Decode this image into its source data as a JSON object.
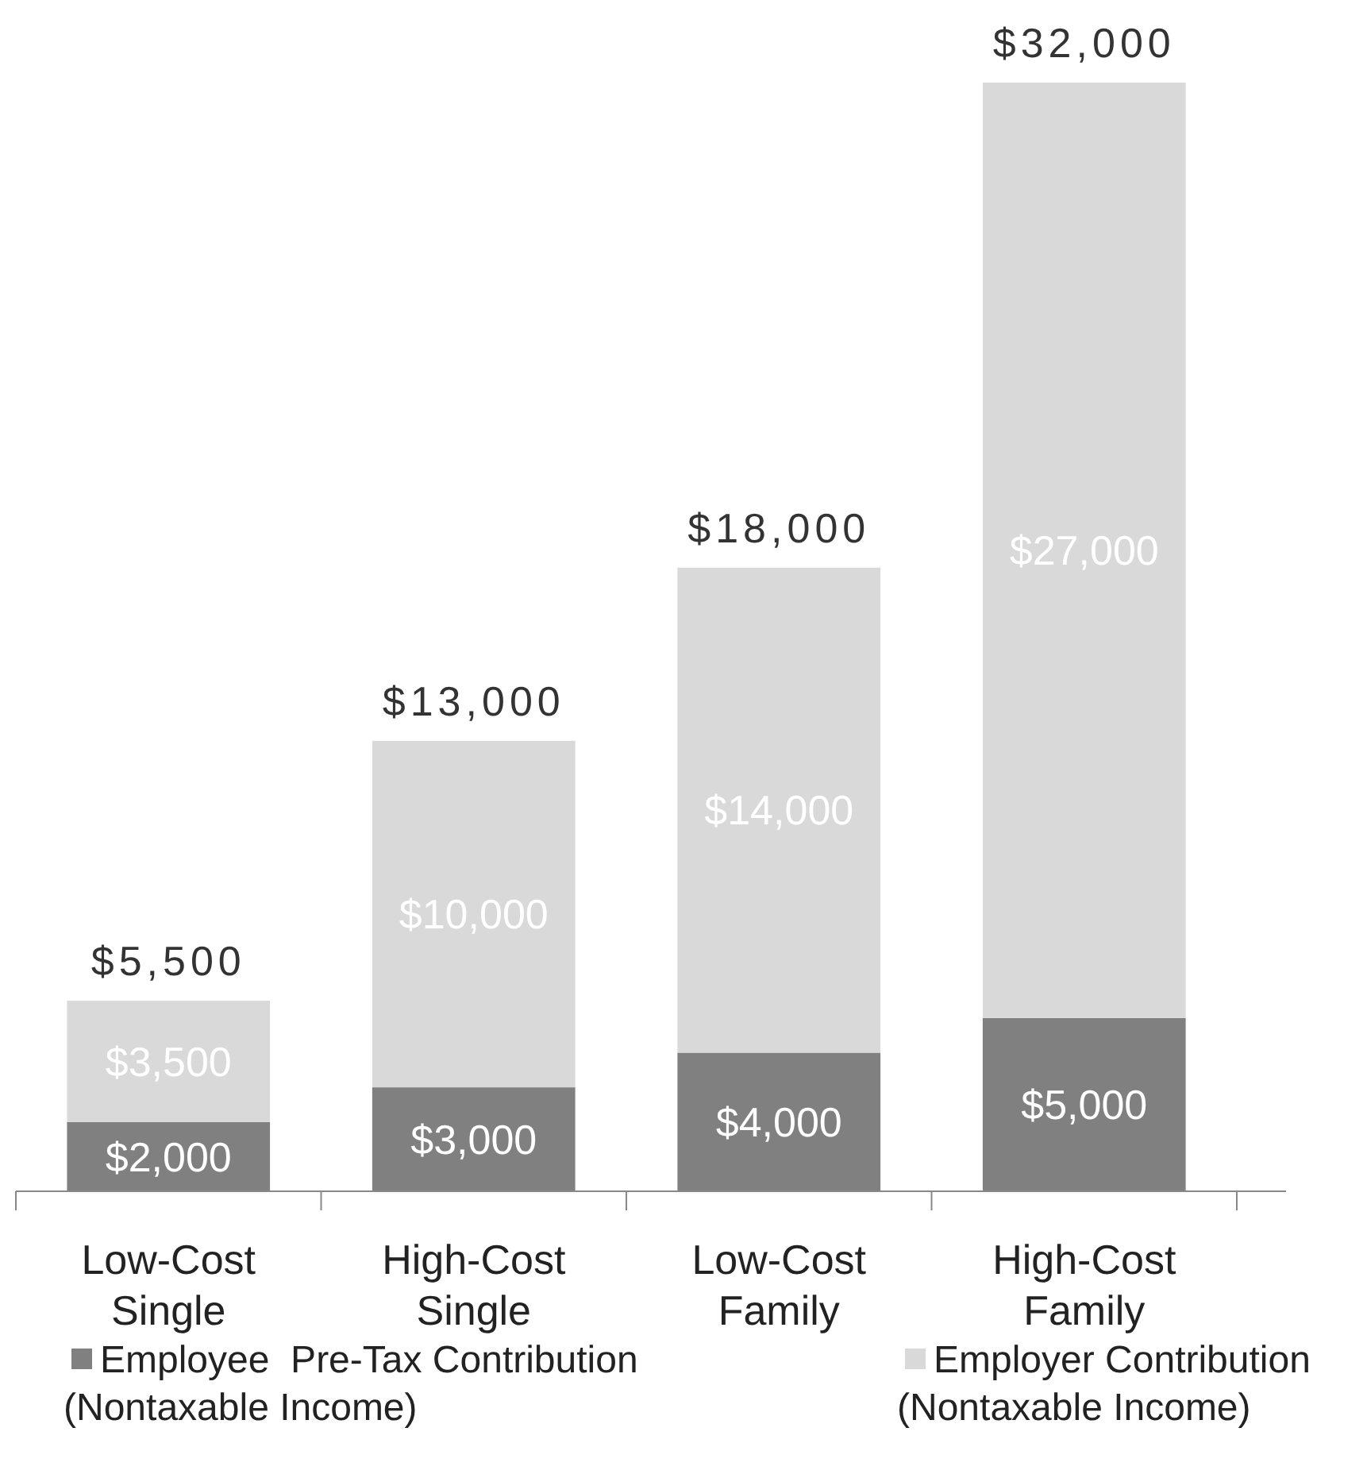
{
  "chart_data": {
    "type": "bar",
    "stacked": true,
    "categories": [
      "Low-Cost Single",
      "High-Cost Single",
      "Low-Cost Family",
      "High-Cost Family"
    ],
    "series": [
      {
        "name": "Employee  Pre-Tax Contribution (Nontaxable Income)",
        "color": "#808080",
        "values": [
          2000,
          3000,
          4000,
          5000
        ],
        "value_labels": [
          "$2,000",
          "$3,000",
          "$4,000",
          "$5,000"
        ]
      },
      {
        "name": "Employer Contribution (Nontaxable Income)",
        "color": "#d9d9d9",
        "values": [
          3500,
          10000,
          14000,
          27000
        ],
        "value_labels": [
          "$3,500",
          "$10,000",
          "$14,000",
          "$27,000"
        ]
      }
    ],
    "totals": [
      "$5,500",
      "$13,000",
      "$18,000",
      "$32,000"
    ],
    "tick_labels": "x",
    "legend": "bottom"
  }
}
